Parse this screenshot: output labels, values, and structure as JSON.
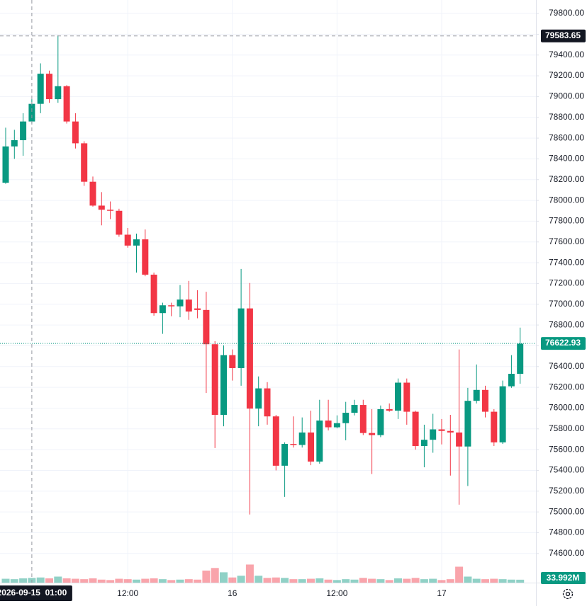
{
  "chart_data": {
    "type": "candlestick",
    "categories": [
      null,
      null,
      null,
      "2026-09-15  01:00",
      null,
      null,
      null,
      null,
      null,
      null,
      null,
      null,
      null,
      null,
      "12:00",
      null,
      null,
      null,
      null,
      null,
      null,
      null,
      null,
      null,
      null,
      null,
      "16",
      null,
      null,
      null,
      null,
      null,
      null,
      null,
      null,
      null,
      null,
      null,
      "12:00",
      null,
      null,
      null,
      null,
      null,
      null,
      null,
      null,
      null,
      null,
      null,
      "17",
      null,
      null,
      null,
      null,
      null,
      null,
      null,
      null,
      null
    ],
    "open": [
      78170,
      78520,
      78580,
      78760,
      78930,
      79220,
      78975,
      79100,
      78760,
      78550,
      78180,
      77950,
      77910,
      77900,
      77670,
      77565,
      77625,
      77285,
      76915,
      76990,
      76980,
      77045,
      76960,
      76945,
      76615,
      75935,
      76510,
      76385,
      76960,
      75995,
      76190,
      75920,
      75445,
      75655,
      75645,
      75765,
      75485,
      75880,
      75815,
      75855,
      75955,
      76030,
      75760,
      75740,
      75990,
      75975,
      76245,
      75965,
      75635,
      75695,
      75795,
      75780,
      75765,
      75630,
      76070,
      76175,
      75965,
      75670,
      76210,
      76330
    ],
    "high": [
      78700,
      78680,
      78840,
      78975,
      79320,
      79250,
      79590,
      79110,
      78840,
      78570,
      78230,
      78080,
      77990,
      77920,
      77735,
      77680,
      77720,
      77305,
      77015,
      77015,
      77185,
      77225,
      77135,
      77120,
      76645,
      76605,
      76565,
      77340,
      77205,
      76305,
      76250,
      75935,
      75670,
      75920,
      75910,
      75975,
      76080,
      76080,
      75930,
      76060,
      76080,
      76080,
      75990,
      76025,
      76045,
      76285,
      76285,
      75975,
      75840,
      75945,
      75895,
      75935,
      76565,
      76195,
      76420,
      76215,
      75990,
      76265,
      76510,
      76775
    ],
    "low": [
      78160,
      78400,
      78430,
      78740,
      78840,
      78940,
      78940,
      78740,
      78500,
      78140,
      77940,
      77760,
      77820,
      77650,
      77545,
      77305,
      77270,
      76890,
      76715,
      76885,
      76875,
      76850,
      76865,
      76145,
      75615,
      75825,
      76265,
      76215,
      74975,
      75825,
      75840,
      75400,
      75145,
      75620,
      75620,
      75450,
      75465,
      75785,
      75805,
      75690,
      75930,
      75740,
      75365,
      75720,
      75965,
      75895,
      75840,
      75600,
      75430,
      75570,
      75650,
      75350,
      75070,
      75250,
      76045,
      75910,
      75635,
      75655,
      76195,
      76235
    ],
    "close": [
      78520,
      78580,
      78760,
      78930,
      79220,
      78975,
      79100,
      78760,
      78550,
      78180,
      77950,
      77910,
      77900,
      77670,
      77565,
      77625,
      77285,
      76915,
      76990,
      76980,
      77045,
      76930,
      76945,
      76615,
      75935,
      76510,
      76385,
      76960,
      75995,
      76190,
      75920,
      75445,
      75655,
      75645,
      75765,
      75485,
      75880,
      75815,
      75855,
      75955,
      76030,
      75760,
      75740,
      75990,
      75975,
      76245,
      75965,
      75635,
      75695,
      75795,
      75780,
      75765,
      75630,
      76070,
      76175,
      75965,
      75670,
      76210,
      76330,
      76620
    ],
    "up_color": "#089981",
    "down_color": "#f23645",
    "ylim": [
      74510,
      79930
    ],
    "yticks": [
      {
        "value": 74600,
        "label": "74600.00"
      },
      {
        "value": 74800,
        "label": "74800.00"
      },
      {
        "value": 75000,
        "label": "75000.00"
      },
      {
        "value": 75200,
        "label": "75200.00"
      },
      {
        "value": 75400,
        "label": "75400.00"
      },
      {
        "value": 75600,
        "label": "75600.00"
      },
      {
        "value": 75800,
        "label": "75800.00"
      },
      {
        "value": 76000,
        "label": "76000.00"
      },
      {
        "value": 76200,
        "label": "76200.00"
      },
      {
        "value": 76400,
        "label": "76400.00"
      },
      {
        "value": 76600,
        "label": "76600.00"
      },
      {
        "value": 76800,
        "label": "76800.00"
      },
      {
        "value": 77000,
        "label": "77000.00"
      },
      {
        "value": 77200,
        "label": "77200.00"
      },
      {
        "value": 77400,
        "label": "77400.00"
      },
      {
        "value": 77600,
        "label": "77600.00"
      },
      {
        "value": 77800,
        "label": "77800.00"
      },
      {
        "value": 78000,
        "label": "78000.00"
      },
      {
        "value": 78200,
        "label": "78200.00"
      },
      {
        "value": 78400,
        "label": "78400.00"
      },
      {
        "value": 78600,
        "label": "78600.00"
      },
      {
        "value": 78800,
        "label": "78800.00"
      },
      {
        "value": 79000,
        "label": "79000.00"
      },
      {
        "value": 79200,
        "label": "79200.00"
      },
      {
        "value": 79400,
        "label": "79400.00"
      },
      {
        "value": 79600,
        "label": "79600.00"
      },
      {
        "value": 79800,
        "label": "79800.00"
      }
    ],
    "grid": true,
    "last_price": 76622.93,
    "crosshair": {
      "x": "2026-09-15  01:00",
      "y": 79583.65
    },
    "volume": {
      "values": [
        45,
        40,
        50,
        55,
        60,
        50,
        70,
        50,
        45,
        40,
        50,
        35,
        30,
        45,
        40,
        35,
        45,
        50,
        40,
        30,
        35,
        40,
        35,
        140,
        170,
        120,
        60,
        80,
        210,
        80,
        55,
        60,
        55,
        40,
        40,
        45,
        50,
        35,
        30,
        40,
        35,
        55,
        45,
        40,
        30,
        50,
        45,
        55,
        40,
        45,
        30,
        40,
        185,
        70,
        45,
        40,
        45,
        40,
        35,
        33.992
      ],
      "ylim": [
        0,
        230
      ],
      "last_value_label": "33.992M"
    }
  }
}
